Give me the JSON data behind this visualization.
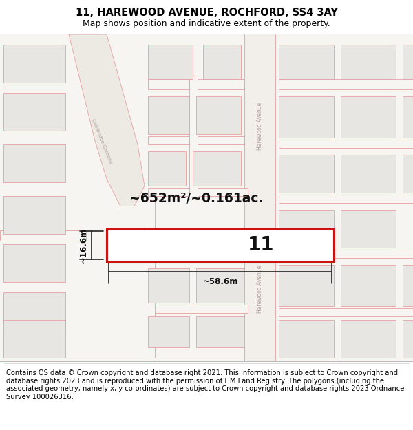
{
  "title": "11, HAREWOOD AVENUE, ROCHFORD, SS4 3AY",
  "subtitle": "Map shows position and indicative extent of the property.",
  "footer": "Contains OS data © Crown copyright and database right 2021. This information is subject to Crown copyright and database rights 2023 and is reproduced with the permission of HM Land Registry. The polygons (including the associated geometry, namely x, y co-ordinates) are subject to Crown copyright and database rights 2023 Ordnance Survey 100026316.",
  "area_text": "~652m²/~0.161ac.",
  "dim_width": "~58.6m",
  "dim_height": "~16.6m",
  "number_label": "11",
  "title_fontsize": 10.5,
  "subtitle_fontsize": 9,
  "footer_fontsize": 7.2,
  "map_bg": "#f7f5f2",
  "block_fill": "#e8e6e3",
  "block_ec": "#e8a0a0",
  "road_ec": "#e8a0a0",
  "road_fill": "#f7f5f2",
  "highlight_fill": "#ffffff",
  "highlight_ec": "#cc1111",
  "dim_color": "#222222",
  "road_label_color": "#b0a0a0",
  "cambridge_road_fill": "#f0eee8",
  "harewood_road_fill": "#f0eee8"
}
